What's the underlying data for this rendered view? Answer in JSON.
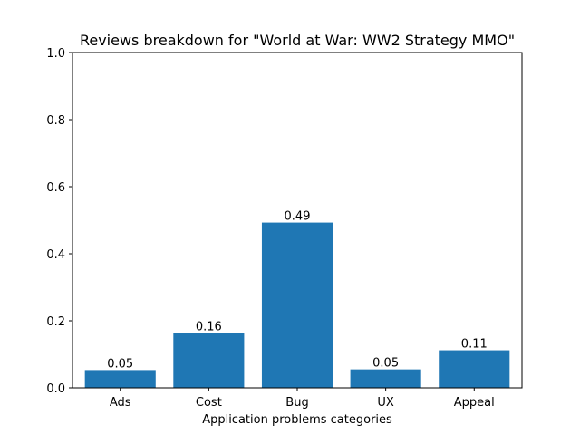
{
  "chart_data": {
    "type": "bar",
    "title": "Reviews breakdown for \"World at War: WW2 Strategy MMO\"",
    "xlabel": "Application problems categories",
    "ylabel": "",
    "categories": [
      "Ads",
      "Cost",
      "Bug",
      "UX",
      "Appeal"
    ],
    "values": [
      0.053,
      0.163,
      0.493,
      0.055,
      0.112
    ],
    "data_labels": [
      "0.05",
      "0.16",
      "0.49",
      "0.05",
      "0.11"
    ],
    "ylim": [
      0,
      1.0
    ],
    "yticks": [
      "0.0",
      "0.2",
      "0.4",
      "0.6",
      "0.8",
      "1.0"
    ],
    "bar_color": "#1f77b4",
    "grid": false,
    "legend": "none"
  }
}
